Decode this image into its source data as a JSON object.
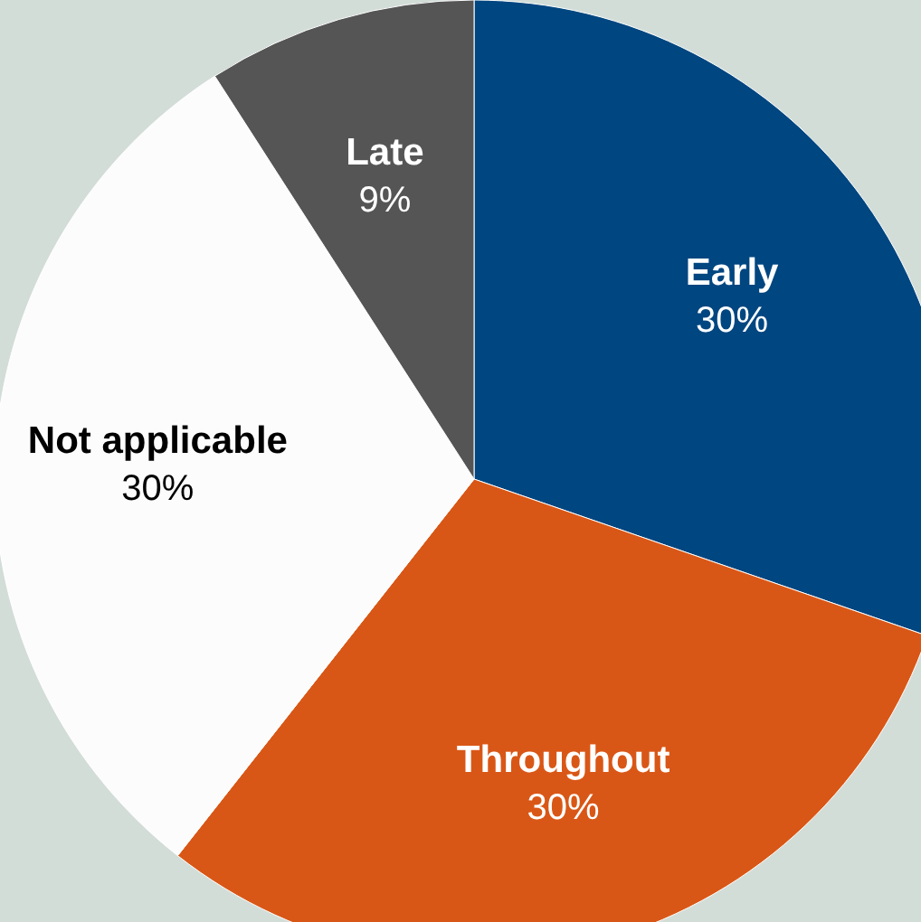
{
  "chart_data": {
    "type": "pie",
    "categories": [
      "Early",
      "Throughout",
      "Not applicable",
      "Late"
    ],
    "values": [
      30,
      30,
      30,
      9
    ],
    "value_labels": [
      "30%",
      "30%",
      "30%",
      "9%"
    ],
    "colors": [
      "#004680",
      "#d95716",
      "#fdfcfd",
      "#555555"
    ]
  }
}
